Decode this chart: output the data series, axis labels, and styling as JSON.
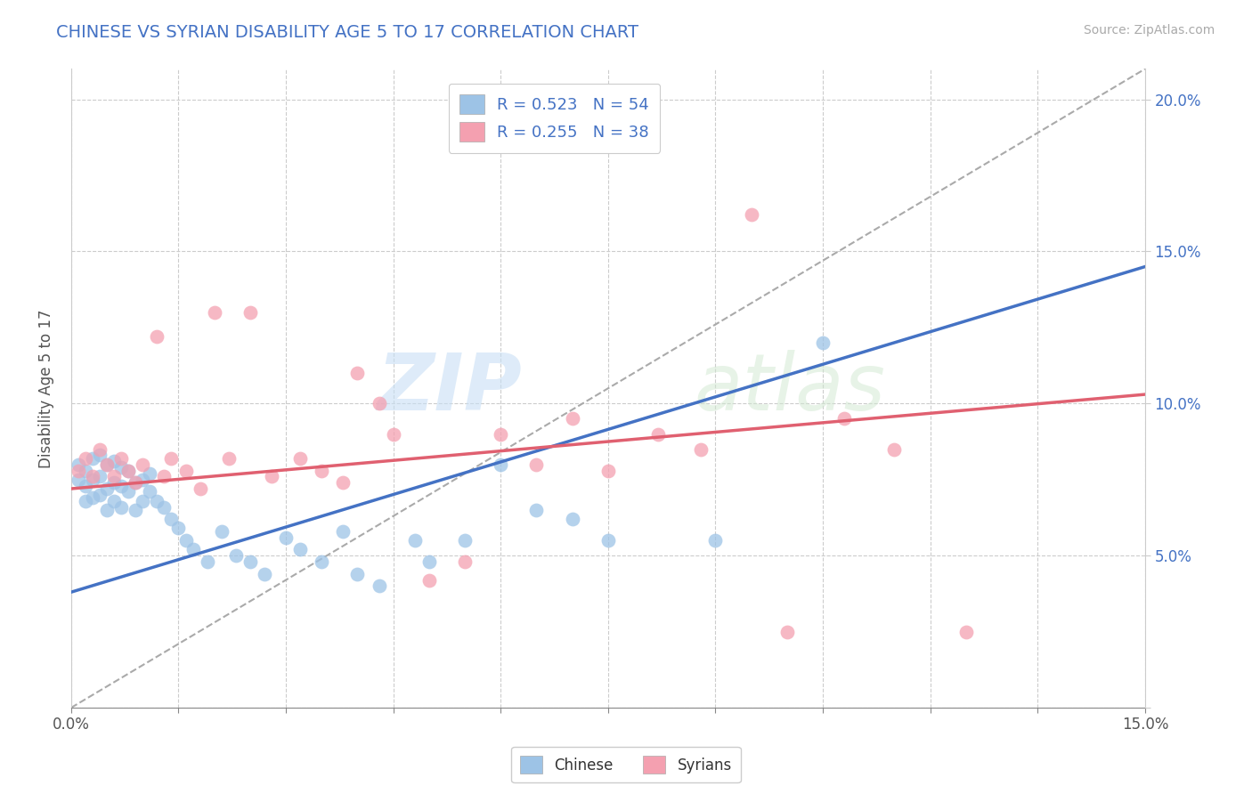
{
  "title": "CHINESE VS SYRIAN DISABILITY AGE 5 TO 17 CORRELATION CHART",
  "source": "Source: ZipAtlas.com",
  "ylabel_label": "Disability Age 5 to 17",
  "xlim": [
    0.0,
    0.15
  ],
  "ylim": [
    0.0,
    0.21
  ],
  "xtick_vals": [
    0.0,
    0.015,
    0.03,
    0.045,
    0.06,
    0.075,
    0.09,
    0.105,
    0.12,
    0.135,
    0.15
  ],
  "xtick_labels": [
    "0.0%",
    "",
    "",
    "",
    "",
    "",
    "",
    "",
    "",
    "",
    "15.0%"
  ],
  "ytick_vals": [
    0.0,
    0.05,
    0.1,
    0.15,
    0.2
  ],
  "ytick_labels": [
    "",
    "5.0%",
    "10.0%",
    "15.0%",
    "20.0%"
  ],
  "title_color": "#4472c4",
  "title_fontsize": 14,
  "chinese_color": "#9dc3e6",
  "syrian_color": "#f4a0b0",
  "chinese_line_color": "#4472c4",
  "syrian_line_color": "#e06070",
  "dashed_line_color": "#aaaaaa",
  "chinese_line_x0": 0.0,
  "chinese_line_y0": 0.038,
  "chinese_line_x1": 0.15,
  "chinese_line_y1": 0.145,
  "syrian_line_x0": 0.0,
  "syrian_line_y0": 0.072,
  "syrian_line_x1": 0.15,
  "syrian_line_y1": 0.103,
  "legend_label_chinese": "R = 0.523   N = 54",
  "legend_label_syrian": "R = 0.255   N = 38",
  "watermark_zip": "ZIP",
  "watermark_atlas": "atlas",
  "chinese_x": [
    0.001,
    0.001,
    0.002,
    0.002,
    0.002,
    0.003,
    0.003,
    0.003,
    0.004,
    0.004,
    0.004,
    0.005,
    0.005,
    0.005,
    0.006,
    0.006,
    0.006,
    0.007,
    0.007,
    0.007,
    0.008,
    0.008,
    0.009,
    0.009,
    0.01,
    0.01,
    0.011,
    0.011,
    0.012,
    0.013,
    0.014,
    0.015,
    0.016,
    0.017,
    0.019,
    0.021,
    0.023,
    0.025,
    0.027,
    0.03,
    0.032,
    0.035,
    0.038,
    0.04,
    0.043,
    0.048,
    0.05,
    0.055,
    0.06,
    0.065,
    0.07,
    0.075,
    0.09,
    0.105
  ],
  "chinese_y": [
    0.075,
    0.08,
    0.068,
    0.073,
    0.078,
    0.069,
    0.075,
    0.082,
    0.07,
    0.076,
    0.083,
    0.065,
    0.072,
    0.08,
    0.068,
    0.074,
    0.081,
    0.066,
    0.073,
    0.079,
    0.071,
    0.078,
    0.065,
    0.074,
    0.068,
    0.075,
    0.071,
    0.077,
    0.068,
    0.066,
    0.062,
    0.059,
    0.055,
    0.052,
    0.048,
    0.058,
    0.05,
    0.048,
    0.044,
    0.056,
    0.052,
    0.048,
    0.058,
    0.044,
    0.04,
    0.055,
    0.048,
    0.055,
    0.08,
    0.065,
    0.062,
    0.055,
    0.055,
    0.12
  ],
  "syrian_x": [
    0.001,
    0.002,
    0.003,
    0.004,
    0.005,
    0.006,
    0.007,
    0.008,
    0.009,
    0.01,
    0.012,
    0.013,
    0.014,
    0.016,
    0.018,
    0.02,
    0.022,
    0.025,
    0.028,
    0.032,
    0.035,
    0.038,
    0.04,
    0.043,
    0.045,
    0.05,
    0.055,
    0.06,
    0.065,
    0.07,
    0.075,
    0.082,
    0.088,
    0.095,
    0.1,
    0.108,
    0.115,
    0.125
  ],
  "syrian_y": [
    0.078,
    0.082,
    0.076,
    0.085,
    0.08,
    0.076,
    0.082,
    0.078,
    0.074,
    0.08,
    0.122,
    0.076,
    0.082,
    0.078,
    0.072,
    0.13,
    0.082,
    0.13,
    0.076,
    0.082,
    0.078,
    0.074,
    0.11,
    0.1,
    0.09,
    0.042,
    0.048,
    0.09,
    0.08,
    0.095,
    0.078,
    0.09,
    0.085,
    0.162,
    0.025,
    0.095,
    0.085,
    0.025
  ]
}
